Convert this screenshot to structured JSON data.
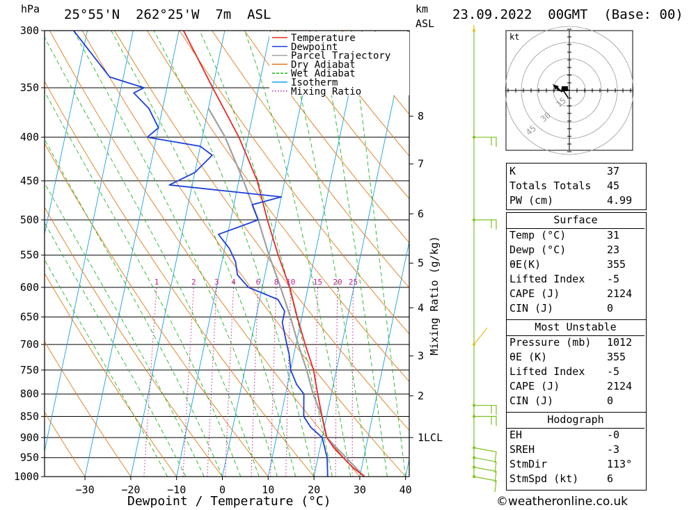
{
  "header": {
    "pressure_unit": "hPa",
    "location": "25°55'N  262°25'W  7m  ASL",
    "km_unit": "km",
    "asl_unit": "ASL",
    "datetime": "23.09.2022  00GMT  (Base: 00)"
  },
  "chart_data": {
    "type": "line",
    "xlabel": "Dewpoint / Temperature (°C)",
    "ylabel": "hPa",
    "right_label": "Mixing Ratio (g/kg)",
    "x_ticks": [
      -30,
      -20,
      -10,
      0,
      10,
      20,
      30,
      40
    ],
    "p_ticks": [
      300,
      350,
      400,
      450,
      500,
      550,
      600,
      650,
      700,
      750,
      800,
      850,
      900,
      950,
      1000
    ],
    "km_ticks": [
      {
        "label": "8",
        "p": 378
      },
      {
        "label": "7",
        "p": 430
      },
      {
        "label": "6",
        "p": 492
      },
      {
        "label": "5",
        "p": 562
      },
      {
        "label": "4",
        "p": 634
      },
      {
        "label": "3",
        "p": 722
      },
      {
        "label": "2",
        "p": 804
      },
      {
        "label": "1LCL",
        "p": 900
      }
    ],
    "mixing_ratio_labels": [
      "1",
      "2",
      "3",
      "4",
      "6",
      "8",
      "10",
      "15",
      "20",
      "25"
    ],
    "legend": [
      {
        "name": "Temperature",
        "color": "#e8282a",
        "style": "solid"
      },
      {
        "name": "Dewpoint",
        "color": "#1b3fd9",
        "style": "solid"
      },
      {
        "name": "Parcel Trajectory",
        "color": "#a0a0a0",
        "style": "solid"
      },
      {
        "name": "Dry Adiabat",
        "color": "#e07a18",
        "style": "solid"
      },
      {
        "name": "Wet Adiabat",
        "color": "#22b422",
        "style": "dashed"
      },
      {
        "name": "Isotherm",
        "color": "#1a9fe0",
        "style": "solid"
      },
      {
        "name": "Mixing Ratio",
        "color": "#c0208a",
        "style": "dotted"
      }
    ],
    "temperature": [
      {
        "p": 1000,
        "t": 31
      },
      {
        "p": 975,
        "t": 28
      },
      {
        "p": 950,
        "t": 25.5
      },
      {
        "p": 925,
        "t": 23
      },
      {
        "p": 900,
        "t": 21
      },
      {
        "p": 875,
        "t": 20
      },
      {
        "p": 850,
        "t": 19
      },
      {
        "p": 800,
        "t": 17
      },
      {
        "p": 750,
        "t": 15
      },
      {
        "p": 700,
        "t": 12
      },
      {
        "p": 650,
        "t": 9
      },
      {
        "p": 600,
        "t": 6
      },
      {
        "p": 550,
        "t": 2
      },
      {
        "p": 500,
        "t": -2
      },
      {
        "p": 450,
        "t": -6
      },
      {
        "p": 400,
        "t": -12
      },
      {
        "p": 350,
        "t": -20
      },
      {
        "p": 300,
        "t": -29
      }
    ],
    "dewpoint": [
      {
        "p": 1000,
        "t": 23
      },
      {
        "p": 950,
        "t": 22
      },
      {
        "p": 900,
        "t": 20
      },
      {
        "p": 875,
        "t": 17
      },
      {
        "p": 850,
        "t": 15
      },
      {
        "p": 800,
        "t": 14
      },
      {
        "p": 780,
        "t": 12
      },
      {
        "p": 750,
        "t": 10
      },
      {
        "p": 720,
        "t": 9
      },
      {
        "p": 700,
        "t": 8
      },
      {
        "p": 660,
        "t": 6
      },
      {
        "p": 640,
        "t": 6
      },
      {
        "p": 620,
        "t": 4
      },
      {
        "p": 600,
        "t": -3
      },
      {
        "p": 580,
        "t": -6
      },
      {
        "p": 560,
        "t": -7
      },
      {
        "p": 540,
        "t": -9
      },
      {
        "p": 520,
        "t": -12
      },
      {
        "p": 500,
        "t": -4
      },
      {
        "p": 480,
        "t": -6
      },
      {
        "p": 470,
        "t": 0
      },
      {
        "p": 455,
        "t": -25
      },
      {
        "p": 440,
        "t": -20
      },
      {
        "p": 420,
        "t": -17
      },
      {
        "p": 410,
        "t": -20
      },
      {
        "p": 400,
        "t": -32
      },
      {
        "p": 390,
        "t": -30
      },
      {
        "p": 370,
        "t": -33
      },
      {
        "p": 355,
        "t": -37
      },
      {
        "p": 350,
        "t": -35
      },
      {
        "p": 340,
        "t": -43
      },
      {
        "p": 300,
        "t": -53
      }
    ],
    "parcel": [
      {
        "p": 1000,
        "t": 31
      },
      {
        "p": 900,
        "t": 21
      },
      {
        "p": 850,
        "t": 19
      },
      {
        "p": 800,
        "t": 16
      },
      {
        "p": 750,
        "t": 13.5
      },
      {
        "p": 700,
        "t": 10.5
      },
      {
        "p": 650,
        "t": 7.5
      },
      {
        "p": 600,
        "t": 4
      },
      {
        "p": 550,
        "t": 0
      },
      {
        "p": 500,
        "t": -4
      },
      {
        "p": 450,
        "t": -9
      },
      {
        "p": 400,
        "t": -15
      },
      {
        "p": 370,
        "t": -20
      }
    ]
  },
  "hodograph": {
    "unit": "kt",
    "ring_labels": [
      "15",
      "30",
      "45"
    ]
  },
  "indices": {
    "general": [
      {
        "key": "K",
        "value": "37"
      },
      {
        "key": "Totals Totals",
        "value": "45"
      },
      {
        "key": "PW (cm)",
        "value": "4.99"
      }
    ],
    "surface_title": "Surface",
    "surface": [
      {
        "key": "Temp (°C)",
        "value": "31"
      },
      {
        "key": "Dewp (°C)",
        "value": "23"
      },
      {
        "key": "θE(K)",
        "value": "355"
      },
      {
        "key": "Lifted Index",
        "value": "-5"
      },
      {
        "key": "CAPE (J)",
        "value": "2124"
      },
      {
        "key": "CIN (J)",
        "value": "0"
      }
    ],
    "mu_title": "Most Unstable",
    "mu": [
      {
        "key": "Pressure (mb)",
        "value": "1012"
      },
      {
        "key": "θE (K)",
        "value": "355"
      },
      {
        "key": "Lifted Index",
        "value": "-5"
      },
      {
        "key": "CAPE (J)",
        "value": "2124"
      },
      {
        "key": "CIN (J)",
        "value": "0"
      }
    ],
    "hodo_title": "Hodograph",
    "hodo": [
      {
        "key": "EH",
        "value": "-0"
      },
      {
        "key": "SREH",
        "value": "-3"
      },
      {
        "key": "StmDir",
        "value": "113°"
      },
      {
        "key": "StmSpd (kt)",
        "value": "6"
      }
    ]
  },
  "credit": "©weatheronline.co.uk",
  "colors": {
    "temperature": "#e8282a",
    "dewpoint": "#1b3fd9",
    "parcel": "#a0a0a0",
    "dry": "#e07a18",
    "wet": "#22b422",
    "isotherm": "#1a9fe0",
    "mixing": "#c0208a",
    "barb": "#7dc21e",
    "barb_top": "#e0c020"
  }
}
